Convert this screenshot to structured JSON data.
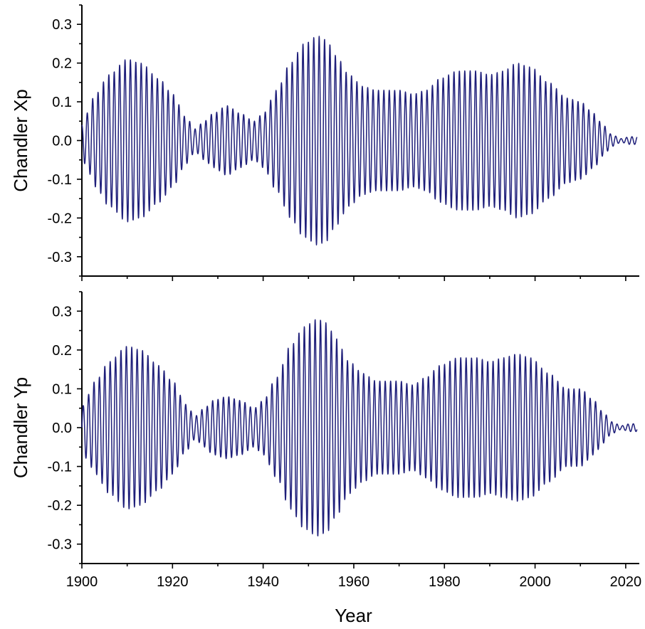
{
  "chart_data": [
    {
      "type": "line",
      "panel": "top",
      "ylabel": "Chandler Xp",
      "xlabel": "",
      "xlim": [
        1900,
        2023
      ],
      "ylim": [
        -0.35,
        0.35
      ],
      "x_ticks": [
        1900,
        1920,
        1940,
        1960,
        1980,
        2000,
        2020
      ],
      "x_tick_labels": [],
      "y_ticks": [
        -0.3,
        -0.2,
        -0.1,
        0.0,
        0.1,
        0.2,
        0.3
      ],
      "y_tick_labels": [
        "-0.3",
        "-0.2",
        "-0.1",
        "0.0",
        "0.1",
        "0.2",
        "0.3"
      ],
      "period_years": 1.19,
      "start_year": 1900,
      "end_year": 2022.5,
      "series": [
        {
          "color": "#1f1f7a",
          "phase": 0.0,
          "envelope": {
            "x": [
              1900,
              1901,
              1903,
              1906,
              1910,
              1913,
              1917,
              1920,
              1923,
              1925,
              1927,
              1929,
              1932,
              1935,
              1938,
              1940,
              1943,
              1946,
              1949,
              1952,
              1954,
              1956,
              1959,
              1962,
              1965,
              1970,
              1973,
              1976,
              1979,
              1983,
              1987,
              1990,
              1993,
              1996,
              1999,
              2003,
              2007,
              2010,
              2013,
              2015,
              2017,
              2019,
              2021,
              2022.5
            ],
            "amplitude": [
              0.04,
              0.07,
              0.12,
              0.17,
              0.21,
              0.2,
              0.16,
              0.12,
              0.06,
              0.03,
              0.05,
              0.07,
              0.09,
              0.07,
              0.05,
              0.07,
              0.13,
              0.2,
              0.25,
              0.27,
              0.26,
              0.22,
              0.17,
              0.14,
              0.13,
              0.13,
              0.12,
              0.13,
              0.16,
              0.18,
              0.18,
              0.17,
              0.18,
              0.2,
              0.19,
              0.15,
              0.11,
              0.1,
              0.07,
              0.04,
              0.015,
              0.005,
              0.01,
              0.01
            ]
          }
        }
      ]
    },
    {
      "type": "line",
      "panel": "bottom",
      "ylabel": "Chandler Yp",
      "xlabel": "Year",
      "xlim": [
        1900,
        2023
      ],
      "ylim": [
        -0.35,
        0.35
      ],
      "x_ticks": [
        1900,
        1920,
        1940,
        1960,
        1980,
        2000,
        2020
      ],
      "x_tick_labels": [
        "1900",
        "1920",
        "1940",
        "1960",
        "1980",
        "2000",
        "2020"
      ],
      "y_ticks": [
        -0.3,
        -0.2,
        -0.1,
        0.0,
        0.1,
        0.2,
        0.3
      ],
      "y_tick_labels": [
        "-0.3",
        "-0.2",
        "-0.1",
        "0.0",
        "0.1",
        "0.2",
        "0.3"
      ],
      "period_years": 1.19,
      "start_year": 1900,
      "end_year": 2022.5,
      "series": [
        {
          "color": "#1f1f7a",
          "phase": -1.5708,
          "envelope": {
            "x": [
              1900,
              1901,
              1903,
              1906,
              1910,
              1913,
              1917,
              1920,
              1923,
              1925,
              1927,
              1929,
              1932,
              1935,
              1938,
              1940,
              1943,
              1946,
              1949,
              1952,
              1954,
              1956,
              1959,
              1962,
              1965,
              1970,
              1973,
              1976,
              1979,
              1983,
              1987,
              1990,
              1993,
              1996,
              1999,
              2003,
              2007,
              2010,
              2013,
              2015,
              2017,
              2019,
              2021,
              2022.5
            ],
            "amplitude": [
              0.05,
              0.08,
              0.12,
              0.17,
              0.21,
              0.2,
              0.16,
              0.12,
              0.06,
              0.03,
              0.05,
              0.07,
              0.08,
              0.07,
              0.05,
              0.07,
              0.13,
              0.21,
              0.26,
              0.28,
              0.27,
              0.23,
              0.17,
              0.14,
              0.12,
              0.12,
              0.11,
              0.13,
              0.16,
              0.18,
              0.18,
              0.17,
              0.18,
              0.19,
              0.18,
              0.14,
              0.1,
              0.1,
              0.07,
              0.04,
              0.015,
              0.005,
              0.01,
              0.01
            ]
          }
        }
      ]
    }
  ]
}
